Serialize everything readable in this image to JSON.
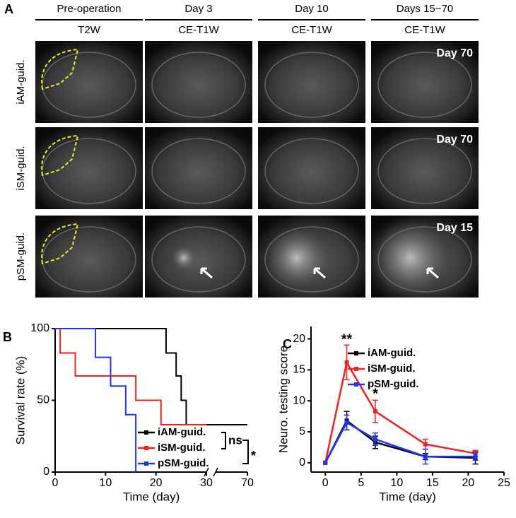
{
  "panel_a": {
    "letter": "A",
    "columns": [
      {
        "time": "Pre-operation",
        "sequence": "T2W"
      },
      {
        "time": "Day 3",
        "sequence": "CE-T1W"
      },
      {
        "time": "Day 10",
        "sequence": "CE-T1W"
      },
      {
        "time": "Days 15−70",
        "sequence": "CE-T1W"
      }
    ],
    "rows": [
      "iAM-guid.",
      "iSM-guid.",
      "pSM-guid."
    ],
    "image_labels": [
      "Day 70",
      "Day 70",
      "Day 15"
    ]
  },
  "chart_data": [
    {
      "type": "step",
      "panel": "B",
      "x_label": "Time (day)",
      "y_label": "Survival rate (%)",
      "xlim": [
        0,
        70
      ],
      "x_break": 30,
      "xticks": [
        0,
        10,
        20,
        30,
        70
      ],
      "ylim": [
        0,
        100
      ],
      "yticks": [
        0,
        50,
        100
      ],
      "legend": "lower right",
      "series": [
        {
          "name": "iAM-guid.",
          "color": "#000000",
          "x": [
            0,
            22,
            24,
            25,
            26,
            70
          ],
          "values": [
            100,
            83,
            67,
            50,
            33,
            33
          ]
        },
        {
          "name": "iSM-guid.",
          "color": "#ee2222",
          "x": [
            0,
            1,
            4,
            16,
            21,
            30
          ],
          "values": [
            100,
            83,
            67,
            50,
            33,
            33
          ]
        },
        {
          "name": "pSM-guid.",
          "color": "#2233ee",
          "x": [
            0,
            8,
            11,
            14,
            16
          ],
          "values": [
            100,
            80,
            60,
            40,
            0
          ]
        }
      ],
      "annotations": [
        "ns",
        "*"
      ]
    },
    {
      "type": "line",
      "panel": "C",
      "x_label": "Time (day)",
      "y_label": "Neuro. testing score",
      "xlim": [
        -2,
        25
      ],
      "xticks": [
        0,
        5,
        10,
        15,
        20,
        25
      ],
      "ylim": [
        -1.5,
        22
      ],
      "yticks": [
        0,
        5,
        10,
        15,
        20
      ],
      "legend": "upper right",
      "x": [
        0,
        3,
        7,
        14,
        21
      ],
      "series": [
        {
          "name": "iAM-guid.",
          "color": "#000000",
          "values": [
            0,
            6.8,
            3.3,
            1.0,
            0.8
          ],
          "errors": [
            0,
            1.5,
            1.0,
            0.5,
            1.0
          ]
        },
        {
          "name": "iSM-guid.",
          "color": "#ee2222",
          "values": [
            0,
            16.2,
            8.3,
            3.0,
            1.5
          ],
          "errors": [
            0,
            2.8,
            1.8,
            0.8,
            0.5
          ]
        },
        {
          "name": "pSM-guid.",
          "color": "#2233ee",
          "values": [
            0,
            6.5,
            3.8,
            1.0,
            1.0
          ],
          "errors": [
            0,
            1.2,
            1.0,
            1.2,
            0.6
          ]
        }
      ],
      "annotations": [
        {
          "text": "**",
          "x": 3,
          "y": 19.8
        },
        {
          "text": "*",
          "x": 7,
          "y": 11
        }
      ]
    }
  ]
}
